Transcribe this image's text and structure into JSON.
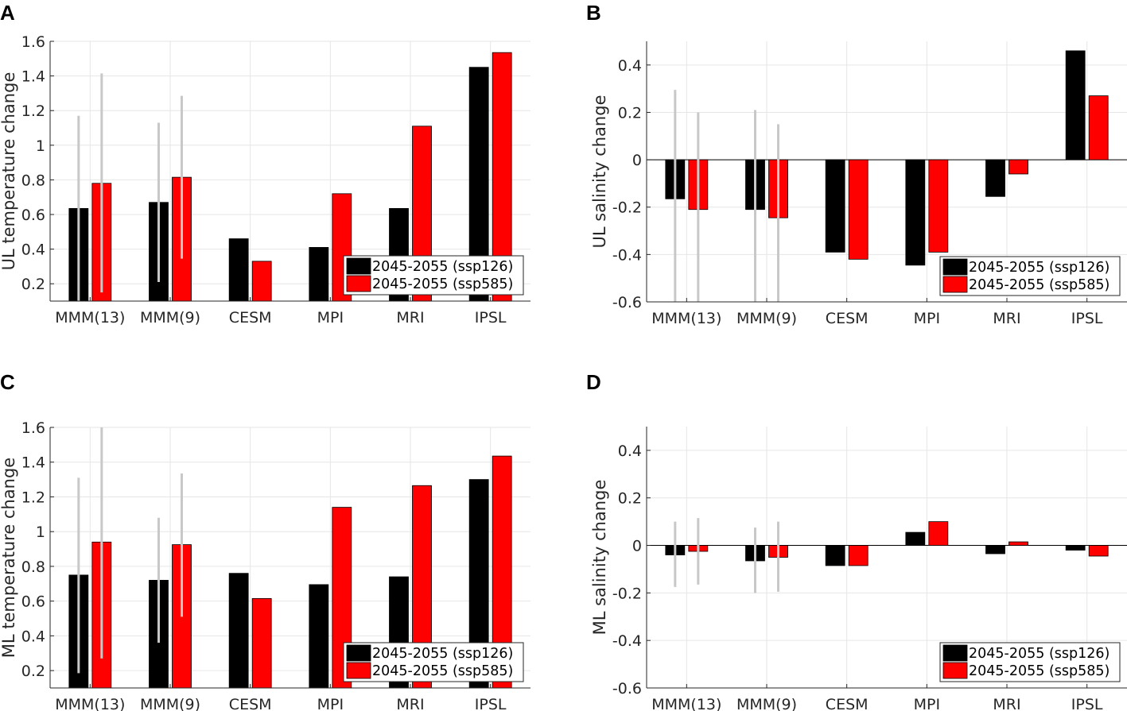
{
  "legend_labels": [
    "2045-2055 (ssp126)",
    "2045-2055 (ssp585)"
  ],
  "colors": {
    "ssp126": "#000000",
    "ssp585": "#ff0000",
    "errorbar": "#c8c8c8",
    "grid": "#e6e6e6",
    "axis": "#262626"
  },
  "chart_data": [
    {
      "panel": "A",
      "type": "bar",
      "ylabel": "UL temperature change",
      "categories": [
        "MMM(13)",
        "MMM(9)",
        "CESM",
        "MPI",
        "MRI",
        "IPSL"
      ],
      "ylim": [
        0.1,
        1.6
      ],
      "yticks": [
        0.2,
        0.4,
        0.6,
        0.8,
        1,
        1.2,
        1.4,
        1.6
      ],
      "ytick_labels": [
        "0.2",
        "0.4",
        "0.6",
        "0.8",
        "1",
        "1.2",
        "1.4",
        "1.6"
      ],
      "series": [
        {
          "name": "2045-2055 (ssp126)",
          "values": [
            0.635,
            0.67,
            0.46,
            0.41,
            0.635,
            1.45
          ],
          "err_low": [
            0.1,
            0.21,
            null,
            null,
            null,
            null
          ],
          "err_high": [
            1.17,
            1.13,
            null,
            null,
            null,
            null
          ]
        },
        {
          "name": "2045-2055 (ssp585)",
          "values": [
            0.78,
            0.815,
            0.33,
            0.72,
            1.11,
            1.535
          ],
          "err_low": [
            0.15,
            0.345,
            null,
            null,
            null,
            null
          ],
          "err_high": [
            1.415,
            1.285,
            null,
            null,
            null,
            null
          ]
        }
      ],
      "legend_position": "bottom-right"
    },
    {
      "panel": "B",
      "type": "bar",
      "ylabel": "UL salinity change",
      "categories": [
        "MMM(13)",
        "MMM(9)",
        "CESM",
        "MPI",
        "MRI",
        "IPSL"
      ],
      "ylim": [
        -0.6,
        0.5
      ],
      "yticks": [
        -0.6,
        -0.4,
        -0.2,
        0,
        0.2,
        0.4
      ],
      "ytick_labels": [
        "-0.6",
        "-0.4",
        "-0.2",
        "0",
        "0.2",
        "0.4"
      ],
      "series": [
        {
          "name": "2045-2055 (ssp126)",
          "values": [
            -0.165,
            -0.21,
            -0.39,
            -0.445,
            -0.155,
            0.46
          ],
          "err_low": [
            -0.6,
            -0.6,
            null,
            null,
            null,
            null
          ],
          "err_high": [
            0.295,
            0.21,
            null,
            null,
            null,
            null
          ]
        },
        {
          "name": "2045-2055 (ssp585)",
          "values": [
            -0.21,
            -0.245,
            -0.42,
            -0.39,
            -0.06,
            0.27
          ],
          "err_low": [
            -0.6,
            -0.6,
            null,
            null,
            null,
            null
          ],
          "err_high": [
            0.2,
            0.15,
            null,
            null,
            null,
            null
          ]
        }
      ],
      "legend_position": "bottom-right"
    },
    {
      "panel": "C",
      "type": "bar",
      "ylabel": "ML temperature change",
      "categories": [
        "MMM(13)",
        "MMM(9)",
        "CESM",
        "MPI",
        "MRI",
        "IPSL"
      ],
      "ylim": [
        0.1,
        1.6
      ],
      "yticks": [
        0.2,
        0.4,
        0.6,
        0.8,
        1,
        1.2,
        1.4,
        1.6
      ],
      "ytick_labels": [
        "0.2",
        "0.4",
        "0.6",
        "0.8",
        "1",
        "1.2",
        "1.4",
        "1.6"
      ],
      "series": [
        {
          "name": "2045-2055 (ssp126)",
          "values": [
            0.75,
            0.72,
            0.76,
            0.695,
            0.74,
            1.3
          ],
          "err_low": [
            0.185,
            0.36,
            null,
            null,
            null,
            null
          ],
          "err_high": [
            1.31,
            1.08,
            null,
            null,
            null,
            null
          ]
        },
        {
          "name": "2045-2055 (ssp585)",
          "values": [
            0.94,
            0.925,
            0.615,
            1.14,
            1.265,
            1.435
          ],
          "err_low": [
            0.27,
            0.51,
            null,
            null,
            null,
            null
          ],
          "err_high": [
            1.6,
            1.335,
            null,
            null,
            null,
            null
          ]
        }
      ],
      "legend_position": "bottom-right"
    },
    {
      "panel": "D",
      "type": "bar",
      "ylabel": "ML salinity change",
      "categories": [
        "MMM(13)",
        "MMM(9)",
        "CESM",
        "MPI",
        "MRI",
        "IPSL"
      ],
      "ylim": [
        -0.6,
        0.5
      ],
      "yticks": [
        -0.6,
        -0.4,
        -0.2,
        0,
        0.2,
        0.4
      ],
      "ytick_labels": [
        "-0.6",
        "-0.4",
        "-0.2",
        "0",
        "0.2",
        "0.4"
      ],
      "series": [
        {
          "name": "2045-2055 (ssp126)",
          "values": [
            -0.04,
            -0.065,
            -0.085,
            0.055,
            -0.035,
            -0.02
          ],
          "err_low": [
            -0.175,
            -0.2,
            null,
            null,
            null,
            null
          ],
          "err_high": [
            0.1,
            0.075,
            null,
            null,
            null,
            null
          ]
        },
        {
          "name": "2045-2055 (ssp585)",
          "values": [
            -0.025,
            -0.05,
            -0.085,
            0.1,
            0.015,
            -0.045
          ],
          "err_low": [
            -0.165,
            -0.195,
            null,
            null,
            null,
            null
          ],
          "err_high": [
            0.115,
            0.1,
            null,
            null,
            null,
            null
          ]
        }
      ],
      "legend_position": "bottom-right"
    }
  ]
}
